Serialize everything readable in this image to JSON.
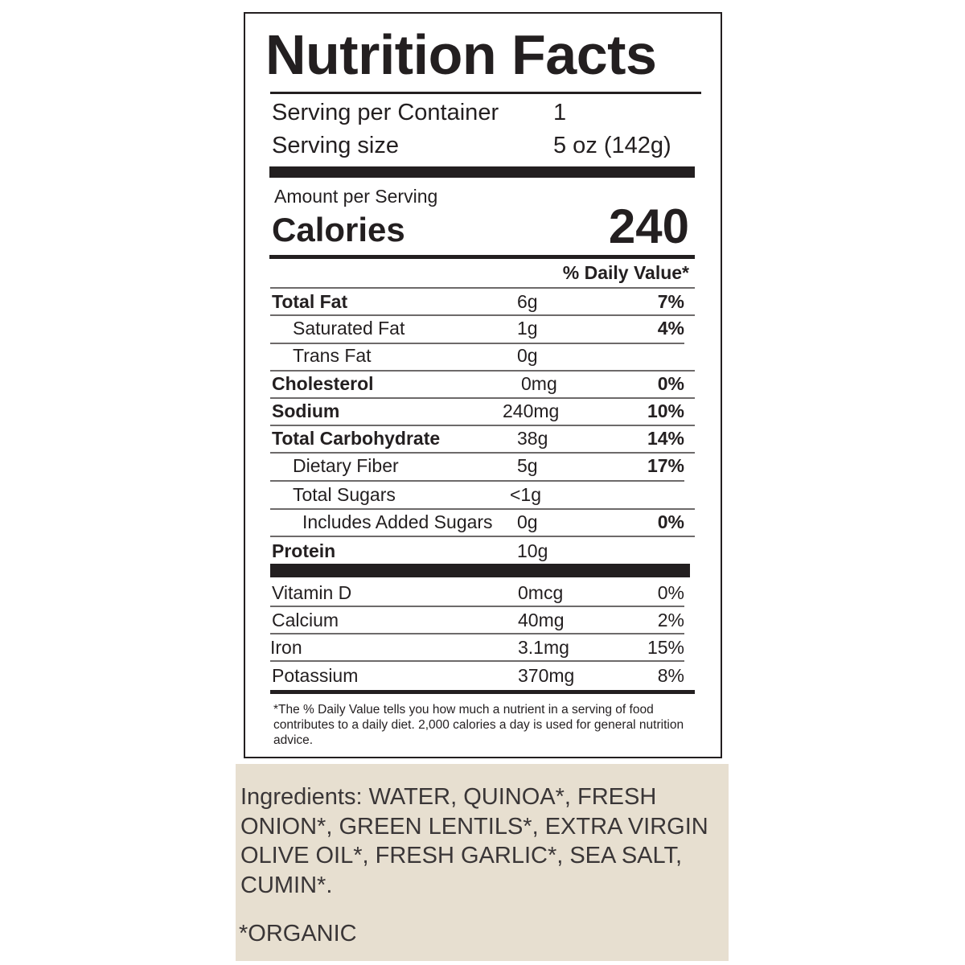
{
  "title": "Nutrition Facts",
  "servings": {
    "label": "Serving per Container",
    "value": "1"
  },
  "serving_size": {
    "label": "Serving size",
    "value": "5 oz (142g)"
  },
  "amount_label": "Amount per Serving",
  "calories": {
    "label": "Calories",
    "value": "240"
  },
  "dv_header": "% Daily Value*",
  "nutrients": [
    {
      "name": "Total Fat",
      "amount": "6g",
      "dv": "7%",
      "bold": true
    },
    {
      "name": "Saturated Fat",
      "amount": "1g",
      "dv": "4%"
    },
    {
      "name": "Trans Fat",
      "amount": "0g",
      "dv": ""
    },
    {
      "name": "Cholesterol",
      "amount": "0mg",
      "dv": "0%",
      "bold": true
    },
    {
      "name": "Sodium",
      "amount": "240mg",
      "dv": "10%",
      "bold": true
    },
    {
      "name": "Total Carbohydrate",
      "amount": "38g",
      "dv": "14%",
      "bold": true
    },
    {
      "name": "Dietary Fiber",
      "amount": "5g",
      "dv": "17%"
    },
    {
      "name": "Total Sugars",
      "amount": "<1g",
      "dv": ""
    },
    {
      "name": "Includes Added Sugars",
      "amount": "0g",
      "dv": "0%"
    },
    {
      "name": "Protein",
      "amount": "10g",
      "dv": "",
      "bold": true
    }
  ],
  "vitamins": [
    {
      "name": "Vitamin D",
      "amount": "0mcg",
      "dv": "0%"
    },
    {
      "name": "Calcium",
      "amount": "40mg",
      "dv": "2%"
    },
    {
      "name": "Iron",
      "amount": "3.1mg",
      "dv": "15%"
    },
    {
      "name": "Potassium",
      "amount": "370mg",
      "dv": "8%"
    }
  ],
  "footnote": "*The % Daily Value tells you how much a nutrient in a serving of food contributes to a daily diet. 2,000 calories a day is used for general nutrition advice.",
  "ingredients": "Ingredients:  WATER, QUINOA*, FRESH ONION*, GREEN LENTILS*, EXTRA VIRGIN OLIVE OIL*, FRESH GARLIC*, SEA SALT, CUMIN*.",
  "organic_note": "*ORGANIC",
  "colors": {
    "ink": "#231f20",
    "ingredients_bg": "#e7dfd0"
  }
}
